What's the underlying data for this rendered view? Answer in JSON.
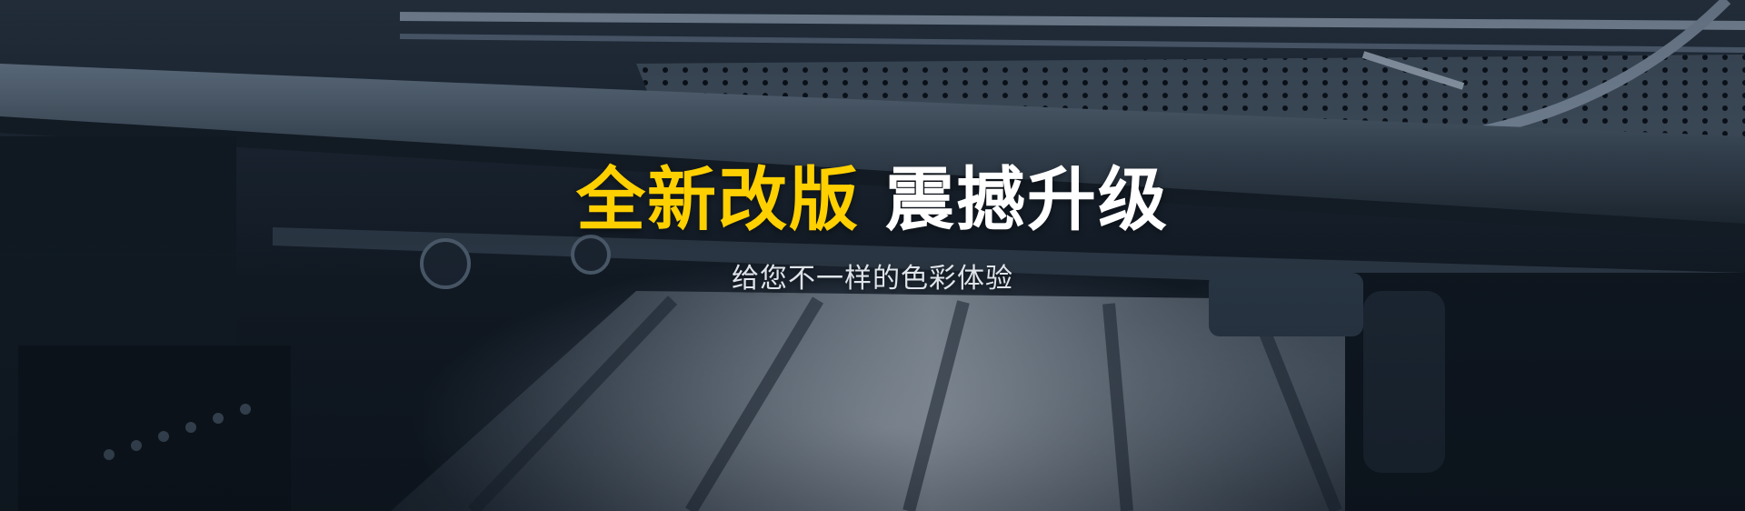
{
  "banner": {
    "headline_part_1": "全新改版",
    "headline_part_2": "震撼升级",
    "subtitle": "给您不一样的色彩体验",
    "background_image": "printing-press-machine-photo"
  },
  "colors": {
    "accent": "#ffd000",
    "headline_secondary": "#ffffff",
    "subtitle": "#dfe4ea"
  }
}
